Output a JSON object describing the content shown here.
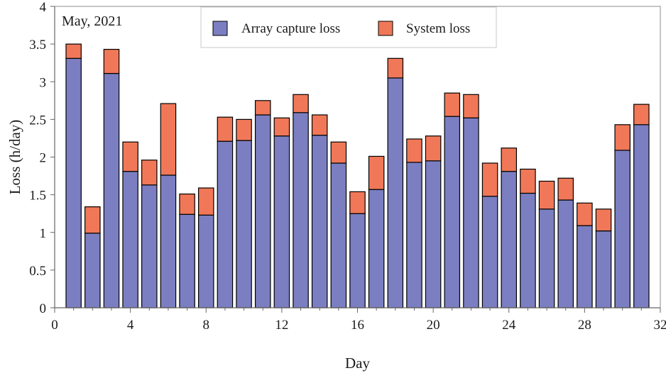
{
  "chart_data": {
    "type": "bar",
    "stacked": true,
    "annotation": "May, 2021",
    "xlabel": "Day",
    "ylabel": "Loss (h/day)",
    "xlim": [
      0,
      32
    ],
    "ylim": [
      0,
      4
    ],
    "x_ticks": [
      0,
      4,
      8,
      12,
      16,
      20,
      24,
      28,
      32
    ],
    "x_tick_labels": [
      "0",
      "4",
      "8",
      "12",
      "16",
      "20",
      "24",
      "28",
      "32"
    ],
    "y_ticks": [
      0,
      0.5,
      1,
      1.5,
      2,
      2.5,
      3,
      3.5,
      4
    ],
    "y_tick_labels": [
      "0",
      "0.5",
      "1",
      "1.5",
      "2",
      "2.5",
      "3",
      "3.5",
      "4"
    ],
    "legend_position": "top-center",
    "grid": false,
    "x": [
      1,
      2,
      3,
      4,
      5,
      6,
      7,
      8,
      9,
      10,
      11,
      12,
      13,
      14,
      15,
      16,
      17,
      18,
      19,
      20,
      21,
      22,
      23,
      24,
      25,
      26,
      27,
      28,
      29,
      30,
      31
    ],
    "series": [
      {
        "name": "Array capture loss",
        "color": "#7b7fc1",
        "values": [
          3.31,
          0.99,
          3.11,
          1.81,
          1.63,
          1.76,
          1.24,
          1.23,
          2.21,
          2.22,
          2.56,
          2.28,
          2.59,
          2.29,
          1.92,
          1.25,
          1.57,
          3.05,
          1.93,
          1.95,
          2.54,
          2.52,
          1.48,
          1.81,
          1.52,
          1.31,
          1.43,
          1.09,
          1.02,
          2.09,
          2.43
        ]
      },
      {
        "name": "System loss",
        "color": "#f07858",
        "values": [
          0.19,
          0.35,
          0.32,
          0.39,
          0.33,
          0.95,
          0.27,
          0.36,
          0.32,
          0.28,
          0.19,
          0.24,
          0.24,
          0.27,
          0.28,
          0.29,
          0.44,
          0.26,
          0.31,
          0.33,
          0.31,
          0.31,
          0.44,
          0.31,
          0.32,
          0.37,
          0.29,
          0.3,
          0.29,
          0.34,
          0.27
        ]
      }
    ]
  }
}
